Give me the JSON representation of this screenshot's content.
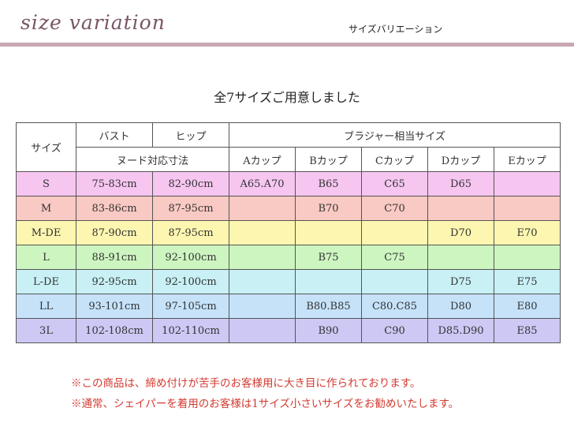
{
  "header": {
    "title": "size variation",
    "subtitle": "サイズバリエーション",
    "rule_color": "#c9a7b3"
  },
  "intro": "全7サイズご用意しました",
  "table": {
    "size_header": "サイズ",
    "bust_header": "バスト",
    "hip_header": "ヒップ",
    "nude_header": "ヌード対応寸法",
    "bra_header": "ブラジャー相当サイズ",
    "cups": [
      "Aカップ",
      "Bカップ",
      "Cカップ",
      "Dカップ",
      "Eカップ"
    ],
    "rows": [
      {
        "size": "S",
        "bust": "75-83cm",
        "hip": "82-90cm",
        "cups": [
          "A65.A70",
          "B65",
          "C65",
          "D65",
          ""
        ],
        "color": "#f6c6f1"
      },
      {
        "size": "M",
        "bust": "83-86cm",
        "hip": "87-95cm",
        "cups": [
          "",
          "B70",
          "C70",
          "",
          ""
        ],
        "color": "#f9c9c3"
      },
      {
        "size": "M-DE",
        "bust": "87-90cm",
        "hip": "87-95cm",
        "cups": [
          "",
          "",
          "",
          "D70",
          "E70"
        ],
        "color": "#fcf6b0"
      },
      {
        "size": "L",
        "bust": "88-91cm",
        "hip": "92-100cm",
        "cups": [
          "",
          "B75",
          "C75",
          "",
          ""
        ],
        "color": "#cdf5c0"
      },
      {
        "size": "L-DE",
        "bust": "92-95cm",
        "hip": "92-100cm",
        "cups": [
          "",
          "",
          "",
          "D75",
          "E75"
        ],
        "color": "#c8f0f5"
      },
      {
        "size": "LL",
        "bust": "93-101cm",
        "hip": "97-105cm",
        "cups": [
          "",
          "B80.B85",
          "C80.C85",
          "D80",
          "E80"
        ],
        "color": "#c5e2f9"
      },
      {
        "size": "3L",
        "bust": "102-108cm",
        "hip": "102-110cm",
        "cups": [
          "",
          "B90",
          "C90",
          "D85.D90",
          "E85"
        ],
        "color": "#cdc8f4"
      }
    ]
  },
  "notes": [
    "※この商品は、締め付けが苦手のお客様用に大き目に作られております。",
    "※通常、シェイパーを着用のお客様は1サイズ小さいサイズをお勧めいたします。"
  ]
}
